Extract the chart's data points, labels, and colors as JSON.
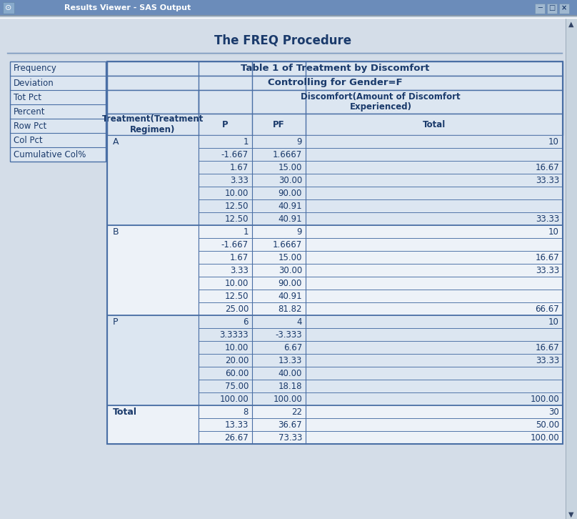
{
  "title": "The FREQ Procedure",
  "table_title": "Table 1 of Treatment by Discomfort",
  "subtitle": "Controlling for Gender=F",
  "legend_items": [
    "Frequency",
    "Deviation",
    "Tot Pct",
    "Percent",
    "Row Pct",
    "Col Pct",
    "Cumulative Col%"
  ],
  "bg_color": "#d4dde8",
  "header_bg": "#dce6f1",
  "border_color": "#4a6fa5",
  "text_color": "#1a3a6b",
  "titlebar_color": "#6b8cba",
  "rows": [
    {
      "label": "A",
      "data": [
        [
          "1",
          "9",
          "10"
        ],
        [
          "-1.667",
          "1.6667",
          ""
        ],
        [
          "1.67",
          "15.00",
          "16.67"
        ],
        [
          "3.33",
          "30.00",
          "33.33"
        ],
        [
          "10.00",
          "90.00",
          ""
        ],
        [
          "12.50",
          "40.91",
          ""
        ],
        [
          "12.50",
          "40.91",
          "33.33"
        ]
      ]
    },
    {
      "label": "B",
      "data": [
        [
          "1",
          "9",
          "10"
        ],
        [
          "-1.667",
          "1.6667",
          ""
        ],
        [
          "1.67",
          "15.00",
          "16.67"
        ],
        [
          "3.33",
          "30.00",
          "33.33"
        ],
        [
          "10.00",
          "90.00",
          ""
        ],
        [
          "12.50",
          "40.91",
          ""
        ],
        [
          "25.00",
          "81.82",
          "66.67"
        ]
      ]
    },
    {
      "label": "P",
      "data": [
        [
          "6",
          "4",
          "10"
        ],
        [
          "3.3333",
          "-3.333",
          ""
        ],
        [
          "10.00",
          "6.67",
          "16.67"
        ],
        [
          "20.00",
          "13.33",
          "33.33"
        ],
        [
          "60.00",
          "40.00",
          ""
        ],
        [
          "75.00",
          "18.18",
          ""
        ],
        [
          "100.00",
          "100.00",
          "100.00"
        ]
      ]
    },
    {
      "label": "Total",
      "data": [
        [
          "8",
          "22",
          "30"
        ],
        [
          "13.33",
          "36.67",
          "50.00"
        ],
        [
          "26.67",
          "73.33",
          "100.00"
        ]
      ]
    }
  ],
  "figsize": [
    8.08,
    7.26
  ],
  "dpi": 100
}
